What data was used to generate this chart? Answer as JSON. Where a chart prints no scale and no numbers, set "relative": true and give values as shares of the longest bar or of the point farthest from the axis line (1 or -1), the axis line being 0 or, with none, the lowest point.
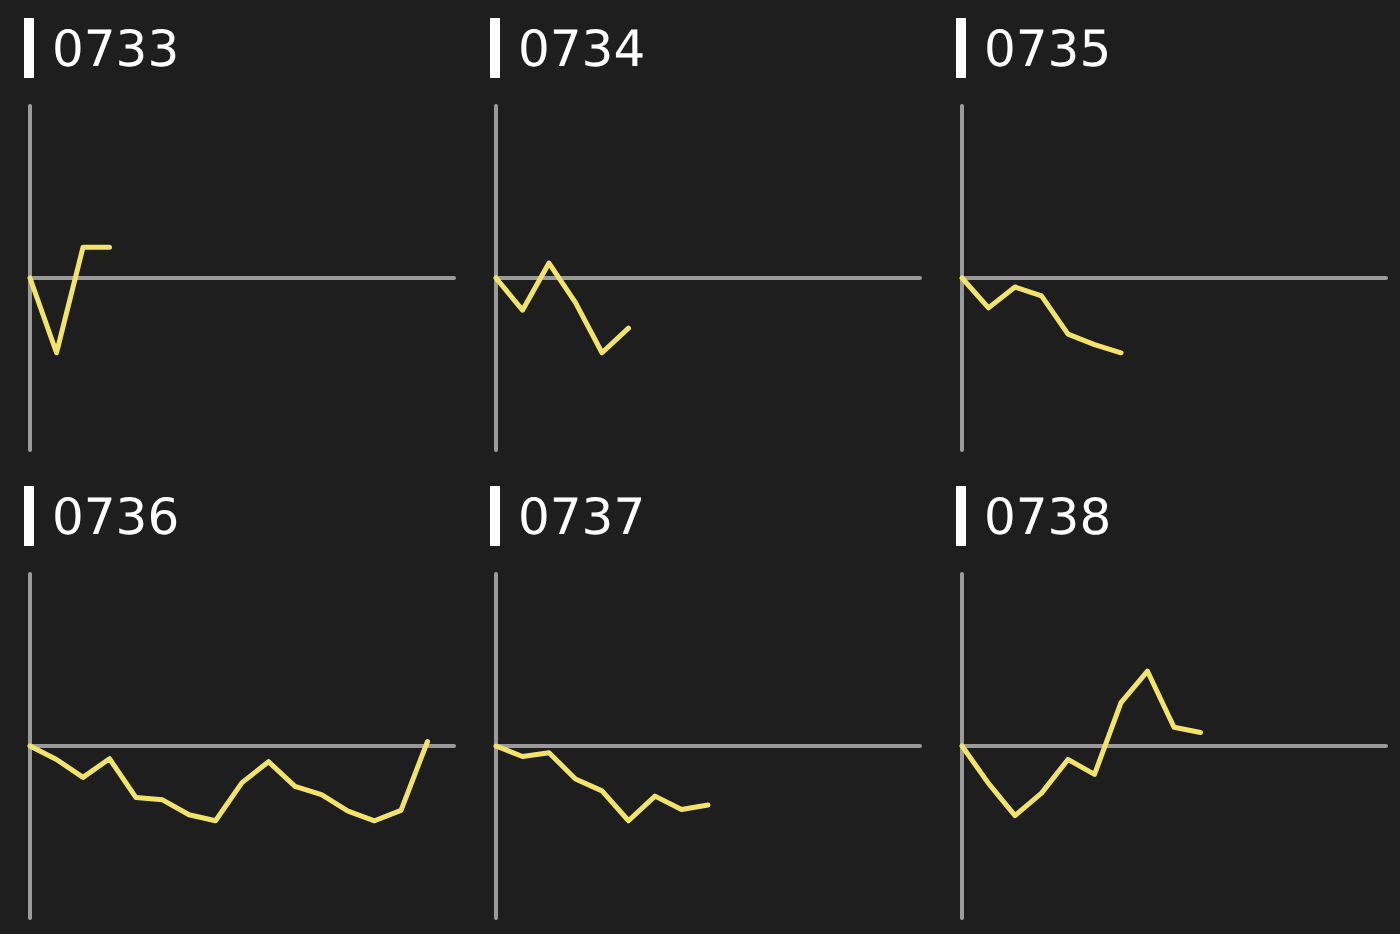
{
  "chart_data": [
    {
      "type": "line",
      "title": "0733",
      "relative": true,
      "color": "#f2e36a",
      "categories": [
        null,
        null,
        null,
        null,
        null,
        null,
        null,
        null,
        null,
        null,
        null,
        null,
        null,
        null,
        null,
        null,
        null
      ],
      "values": [
        0,
        -1,
        0.41,
        0.41,
        null,
        null,
        null,
        null,
        null,
        null,
        null,
        null,
        null,
        null,
        null,
        null,
        null
      ]
    },
    {
      "type": "line",
      "title": "0734",
      "relative": true,
      "color": "#f2e36a",
      "categories": [
        null,
        null,
        null,
        null,
        null,
        null,
        null,
        null,
        null,
        null,
        null,
        null,
        null,
        null,
        null,
        null,
        null
      ],
      "values": [
        0,
        -0.43,
        0.2,
        -0.33,
        -1,
        -0.67,
        null,
        null,
        null,
        null,
        null,
        null,
        null,
        null,
        null,
        null,
        null
      ]
    },
    {
      "type": "line",
      "title": "0735",
      "relative": true,
      "color": "#f2e36a",
      "categories": [
        null,
        null,
        null,
        null,
        null,
        null,
        null,
        null,
        null,
        null,
        null,
        null,
        null,
        null,
        null,
        null,
        null
      ],
      "values": [
        0,
        -0.4,
        -0.12,
        -0.24,
        -0.75,
        -0.89,
        -1,
        null,
        null,
        null,
        null,
        null,
        null,
        null,
        null,
        null,
        null
      ]
    },
    {
      "type": "line",
      "title": "0736",
      "relative": true,
      "color": "#f2e36a",
      "categories": [
        null,
        null,
        null,
        null,
        null,
        null,
        null,
        null,
        null,
        null,
        null,
        null,
        null,
        null,
        null,
        null,
        null
      ],
      "values": [
        0,
        -0.18,
        -0.42,
        -0.17,
        -0.69,
        -0.72,
        -0.92,
        -1,
        -0.49,
        -0.21,
        -0.54,
        -0.65,
        -0.87,
        -1,
        -0.86,
        0.06,
        null
      ]
    },
    {
      "type": "line",
      "title": "0737",
      "relative": true,
      "color": "#f2e36a",
      "categories": [
        null,
        null,
        null,
        null,
        null,
        null,
        null,
        null,
        null,
        null,
        null,
        null,
        null,
        null,
        null,
        null,
        null
      ],
      "values": [
        0,
        -0.14,
        -0.09,
        -0.44,
        -0.6,
        -1,
        -0.67,
        -0.85,
        -0.79,
        null,
        null,
        null,
        null,
        null,
        null,
        null,
        null
      ]
    },
    {
      "type": "line",
      "title": "0738",
      "relative": true,
      "color": "#f2e36a",
      "categories": [
        null,
        null,
        null,
        null,
        null,
        null,
        null,
        null,
        null,
        null,
        null,
        null,
        null,
        null,
        null,
        null,
        null
      ],
      "values": [
        0,
        -0.5,
        -0.93,
        -0.63,
        -0.18,
        -0.38,
        0.58,
        1,
        0.25,
        0.18,
        null,
        null,
        null,
        null,
        null,
        null,
        null
      ]
    }
  ]
}
